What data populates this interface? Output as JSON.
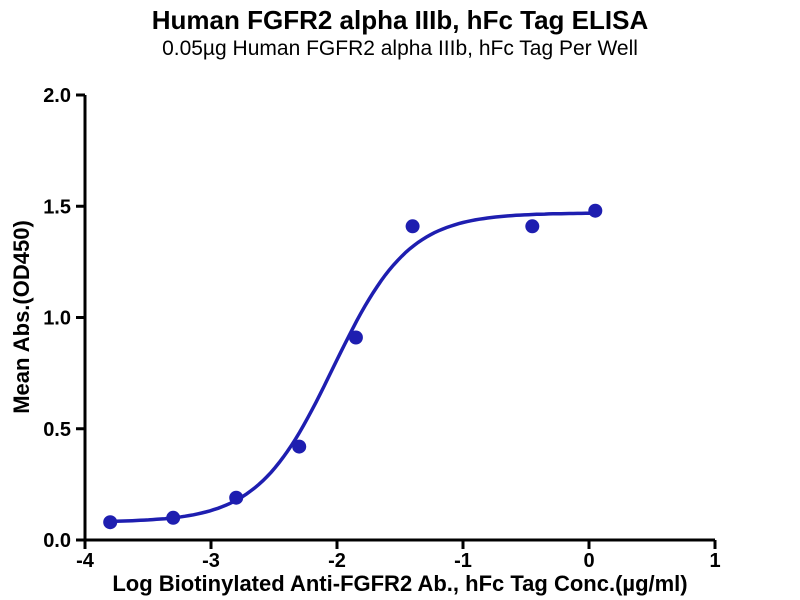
{
  "chart_data": {
    "type": "scatter",
    "title": "Human FGFR2 alpha IIIb, hFc Tag ELISA",
    "subtitle": "0.05µg Human FGFR2 alpha IIIb, hFc Tag Per Well",
    "xlabel": "Log Biotinylated  Anti-FGFR2 Ab., hFc Tag Conc.(µg/ml)",
    "ylabel": "Mean Abs.(OD450)",
    "xlim": [
      -4,
      1
    ],
    "ylim": [
      0,
      2
    ],
    "xticks": [
      -4,
      -3,
      -2,
      -1,
      0,
      1
    ],
    "yticks": [
      0,
      0.5,
      1,
      1.5,
      2
    ],
    "grid": false,
    "legend": null,
    "axis_color": "#000000",
    "series": [
      {
        "name": "Biotinylated Anti-FGFR2 Ab., hFc Tag",
        "color": "#1e1eb0",
        "points": [
          {
            "x": -3.8,
            "y": 0.08
          },
          {
            "x": -3.3,
            "y": 0.1
          },
          {
            "x": -2.8,
            "y": 0.19
          },
          {
            "x": -2.3,
            "y": 0.42
          },
          {
            "x": -1.85,
            "y": 0.91
          },
          {
            "x": -1.4,
            "y": 1.41
          },
          {
            "x": -0.45,
            "y": 1.41
          },
          {
            "x": 0.05,
            "y": 1.48
          }
        ],
        "fit": {
          "model": "4PL",
          "bottom": 0.08,
          "top": 1.47,
          "logEC50": -2.03,
          "hillslope": 1.45,
          "x_start": -3.82,
          "x_end": 0.07
        }
      }
    ]
  }
}
